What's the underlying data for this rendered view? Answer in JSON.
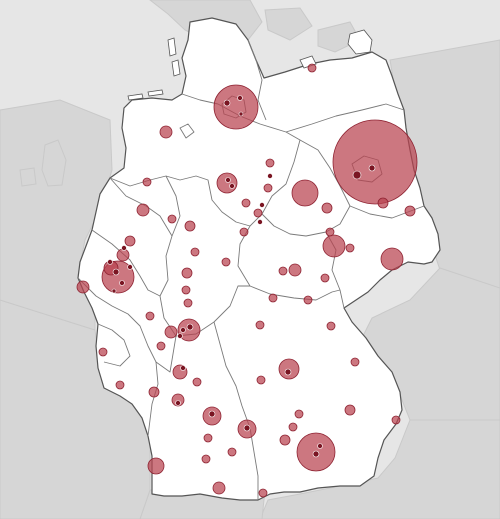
{
  "map": {
    "colors": {
      "sea": "#e6e6e6",
      "land_outside": "#d6d6d6",
      "country": "#ffffff",
      "marker": "#b8424f",
      "marker_stroke": "#8f2433"
    }
  }
}
